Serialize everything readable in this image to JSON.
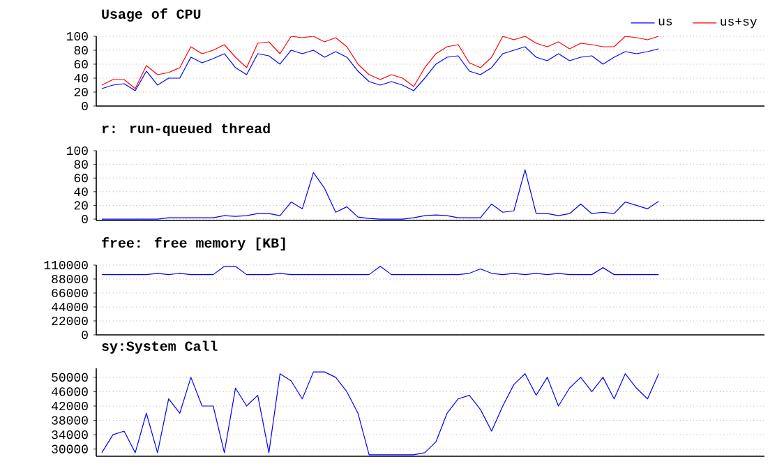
{
  "chart_data": [
    {
      "type": "line",
      "title": "Usage of CPU",
      "categories": [
        null,
        null,
        null,
        null,
        null,
        null,
        null,
        null,
        null,
        null,
        null,
        null,
        null,
        null,
        null,
        null,
        null,
        null,
        null,
        null,
        null,
        null,
        null,
        null,
        null,
        null,
        null,
        null,
        null,
        null,
        null,
        null,
        null,
        null,
        null,
        null,
        null,
        null,
        null,
        null,
        null,
        null,
        null,
        null,
        null,
        null,
        null,
        null,
        null,
        null,
        null,
        null,
        null,
        null,
        null,
        null,
        null,
        null,
        null,
        null
      ],
      "series": [
        {
          "name": "us",
          "color": "#0000ff",
          "values": [
            25,
            30,
            32,
            22,
            50,
            30,
            40,
            40,
            70,
            62,
            68,
            75,
            55,
            45,
            75,
            72,
            60,
            80,
            75,
            80,
            70,
            78,
            70,
            50,
            35,
            30,
            35,
            30,
            22,
            40,
            60,
            70,
            72,
            50,
            45,
            55,
            75,
            80,
            85,
            70,
            65,
            75,
            65,
            70,
            72,
            60,
            70,
            78,
            75,
            78,
            82,
            null,
            null,
            null,
            null,
            null,
            null,
            null,
            null,
            null
          ]
        },
        {
          "name": "us+sy",
          "color": "#ff0000",
          "values": [
            30,
            38,
            38,
            25,
            58,
            45,
            48,
            55,
            85,
            75,
            80,
            88,
            70,
            55,
            90,
            92,
            75,
            100,
            98,
            100,
            92,
            98,
            85,
            60,
            45,
            38,
            45,
            40,
            28,
            55,
            75,
            85,
            88,
            62,
            55,
            70,
            100,
            95,
            100,
            90,
            85,
            92,
            82,
            90,
            88,
            85,
            85,
            100,
            98,
            95,
            100,
            null,
            null,
            null,
            null,
            null,
            null,
            null,
            null,
            null
          ]
        }
      ],
      "ylim": [
        0,
        100
      ],
      "yticks": [
        0,
        20,
        40,
        60,
        80,
        100
      ],
      "grid": "y",
      "legend": "top right",
      "tick_labels": "y"
    },
    {
      "type": "line",
      "title": "r: run-queued thread",
      "categories": [
        null,
        null,
        null,
        null,
        null,
        null,
        null,
        null,
        null,
        null,
        null,
        null,
        null,
        null,
        null,
        null,
        null,
        null,
        null,
        null,
        null,
        null,
        null,
        null,
        null,
        null,
        null,
        null,
        null,
        null,
        null,
        null,
        null,
        null,
        null,
        null,
        null,
        null,
        null,
        null,
        null,
        null,
        null,
        null,
        null,
        null,
        null,
        null,
        null,
        null,
        null,
        null,
        null,
        null,
        null,
        null,
        null,
        null,
        null,
        null
      ],
      "series": [
        {
          "color": "#0000ff",
          "values": [
            0,
            0,
            0,
            0,
            0,
            0,
            2,
            2,
            2,
            2,
            2,
            5,
            4,
            5,
            8,
            8,
            5,
            25,
            15,
            68,
            45,
            10,
            18,
            3,
            1,
            0,
            0,
            0,
            2,
            5,
            6,
            5,
            2,
            2,
            2,
            22,
            10,
            12,
            72,
            8,
            8,
            5,
            8,
            22,
            8,
            10,
            8,
            25,
            20,
            15,
            26,
            null,
            null,
            null,
            null,
            null,
            null,
            null,
            null,
            null
          ]
        }
      ],
      "ylim": [
        -2,
        100
      ],
      "yticks": [
        0,
        20,
        40,
        60,
        80,
        100
      ],
      "grid": "y",
      "tick_labels": "y"
    },
    {
      "type": "line",
      "title": "free: free memory [KB]",
      "categories": [
        null,
        null,
        null,
        null,
        null,
        null,
        null,
        null,
        null,
        null,
        null,
        null,
        null,
        null,
        null,
        null,
        null,
        null,
        null,
        null,
        null,
        null,
        null,
        null,
        null,
        null,
        null,
        null,
        null,
        null,
        null,
        null,
        null,
        null,
        null,
        null,
        null,
        null,
        null,
        null,
        null,
        null,
        null,
        null,
        null,
        null,
        null,
        null,
        null,
        null,
        null,
        null,
        null,
        null,
        null,
        null,
        null,
        null,
        null,
        null
      ],
      "series": [
        {
          "color": "#0000ff",
          "values": [
            95000,
            95000,
            95000,
            95000,
            95000,
            97000,
            95000,
            97000,
            95000,
            95000,
            95000,
            108000,
            108000,
            95000,
            95000,
            95000,
            97000,
            95000,
            95000,
            95000,
            95000,
            95000,
            95000,
            95000,
            95000,
            108000,
            95000,
            95000,
            95000,
            95000,
            95000,
            95000,
            95000,
            97000,
            104000,
            97000,
            95000,
            97000,
            95000,
            97000,
            95000,
            97000,
            95000,
            95000,
            95000,
            106000,
            95000,
            95000,
            95000,
            95000,
            95000,
            null,
            null,
            null,
            null,
            null,
            null,
            null,
            null,
            null
          ]
        }
      ],
      "ylim": [
        0,
        110000
      ],
      "yticks": [
        0,
        22000,
        44000,
        66000,
        88000,
        110000
      ],
      "grid": "y",
      "tick_labels": "y"
    },
    {
      "type": "line",
      "title": "sy:System Call",
      "categories": [
        null,
        null,
        null,
        null,
        null,
        null,
        null,
        null,
        null,
        null,
        null,
        null,
        null,
        null,
        null,
        null,
        null,
        null,
        null,
        null,
        null,
        null,
        null,
        null,
        null,
        null,
        null,
        null,
        null,
        null,
        null,
        null,
        null,
        null,
        null,
        null,
        null,
        null,
        null,
        null,
        null,
        null,
        null,
        null,
        null,
        null,
        null,
        null,
        null,
        null,
        null,
        null,
        null,
        null,
        null,
        null,
        null,
        null,
        null,
        null
      ],
      "series": [
        {
          "color": "#0000ff",
          "values": [
            29000,
            34000,
            35000,
            29000,
            40000,
            29000,
            44000,
            40000,
            50000,
            42000,
            42000,
            29000,
            47000,
            42000,
            45000,
            29000,
            51000,
            49000,
            44000,
            51500,
            51500,
            50000,
            46000,
            40000,
            28400,
            28400,
            28400,
            28400,
            28400,
            29000,
            32000,
            40000,
            44000,
            45000,
            41000,
            35000,
            42000,
            48000,
            51000,
            45000,
            50000,
            42000,
            47000,
            50000,
            46000,
            50000,
            44000,
            51000,
            47000,
            44000,
            51000,
            null,
            null,
            null,
            null,
            null,
            null,
            null,
            null,
            null
          ]
        }
      ],
      "ylim": [
        28000,
        52500
      ],
      "yticks": [
        30000,
        34000,
        38000,
        42000,
        46000,
        50000
      ],
      "grid": "y",
      "tick_labels": "y"
    }
  ]
}
